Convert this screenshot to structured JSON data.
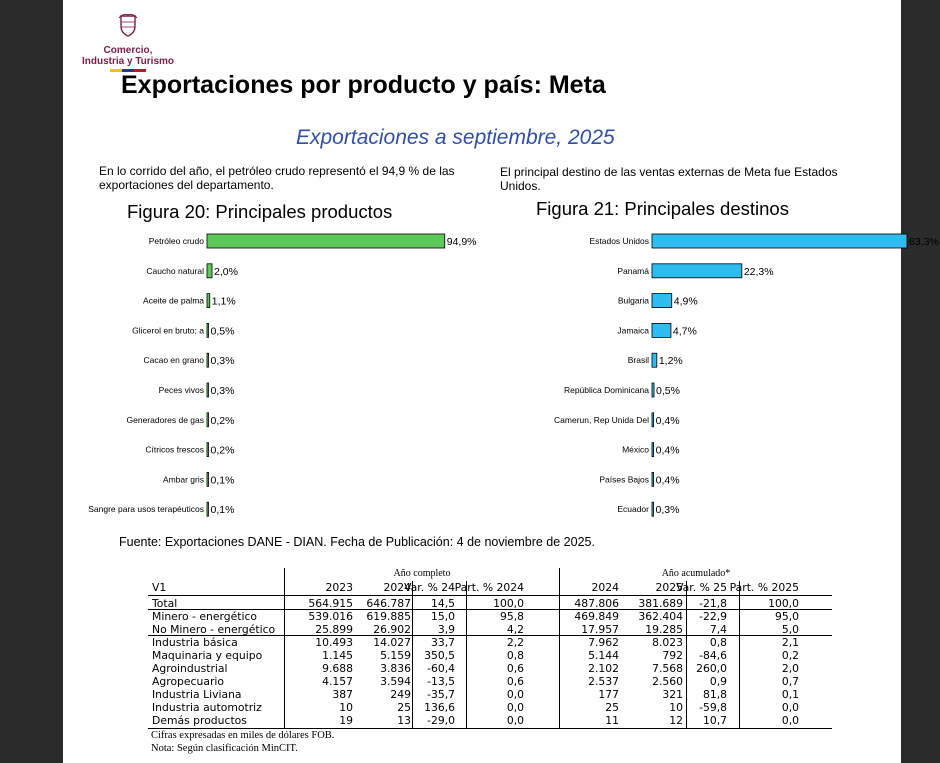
{
  "logo": {
    "line1": "Comercio,",
    "line2": "Industria y Turismo",
    "emblem_icon": "coat-of-arms-icon",
    "flag_colors": [
      "#f5c400",
      "#1f3a93",
      "#c8102e"
    ]
  },
  "title": "Exportaciones por producto y país: Meta",
  "subtitle": "Exportaciones a septiembre, 2025",
  "left_text": "En lo corrido del año, el petróleo crudo representó el 94,9 % de las exportaciones del departamento.",
  "right_text": "El principal destino de las ventas externas de Meta fue Estados Unidos.",
  "chart_data": [
    {
      "type": "bar",
      "orientation": "horizontal",
      "title": "Figura 20: Principales productos",
      "color": "#5cc85a",
      "categories": [
        "Petróleo crudo",
        "Caucho natural",
        "Aceite de palma",
        "Glicerol en bruto; a",
        "Cacao en grano",
        "Peces vivos",
        "Generadores de gas",
        "Cítricos frescos",
        "Ambar gris",
        "Sangre para usos terapéuticos"
      ],
      "values": [
        94.9,
        2.0,
        1.1,
        0.5,
        0.3,
        0.3,
        0.2,
        0.2,
        0.1,
        0.1
      ],
      "labels": [
        "94,9%",
        "2,0%",
        "1,1%",
        "0,5%",
        "0,3%",
        "0,3%",
        "0,2%",
        "0,2%",
        "0,1%",
        "0,1%"
      ],
      "xlim": [
        0,
        95
      ]
    },
    {
      "type": "bar",
      "orientation": "horizontal",
      "title": "Figura 21: Principales destinos",
      "color": "#2fbcf0",
      "categories": [
        "Estados Unidos",
        "Panamá",
        "Bulgaria",
        "Jamaica",
        "Brasil",
        "República Dominicana",
        "Camerun, Rep Unida Del",
        "México",
        "Países Bajos",
        "Ecuador"
      ],
      "values": [
        63.3,
        22.3,
        4.9,
        4.7,
        1.2,
        0.5,
        0.4,
        0.4,
        0.4,
        0.3
      ],
      "labels": [
        "63,3%",
        "22,3%",
        "4,9%",
        "4,7%",
        "1,2%",
        "0,5%",
        "0,4%",
        "0,4%",
        "0,4%",
        "0,3%"
      ],
      "xlim": [
        0,
        63.3
      ]
    }
  ],
  "source": "Fuente: Exportaciones DANE - DIAN. Fecha de Publicación: 4 de noviembre de 2025.",
  "table": {
    "group_full": "Año completo",
    "group_acc": "Año acumulado*",
    "headers": [
      "V1",
      "2023",
      "2024",
      "Var. % 24",
      "Part. % 2024",
      "2024",
      "2025",
      "Var. % 25",
      "Part. % 2025"
    ],
    "rows": [
      [
        "Total",
        "564.915",
        "646.787",
        "14,5",
        "100,0",
        "487.806",
        "381.689",
        "-21,8",
        "100,0"
      ],
      [
        "Minero - energético",
        "539.016",
        "619.885",
        "15,0",
        "95,8",
        "469.849",
        "362.404",
        "-22,9",
        "95,0"
      ],
      [
        "No Minero - energético",
        "25.899",
        "26.902",
        "3,9",
        "4,2",
        "17.957",
        "19.285",
        "7,4",
        "5,0"
      ],
      [
        "Industria básica",
        "10.493",
        "14.027",
        "33,7",
        "2,2",
        "7.962",
        "8.023",
        "0,8",
        "2,1"
      ],
      [
        "Maquinaria y equipo",
        "1.145",
        "5.159",
        "350,5",
        "0,8",
        "5.144",
        "792",
        "-84,6",
        "0,2"
      ],
      [
        "Agroindustrial",
        "9.688",
        "3.836",
        "-60,4",
        "0,6",
        "2.102",
        "7.568",
        "260,0",
        "2,0"
      ],
      [
        "Agropecuario",
        "4.157",
        "3.594",
        "-13,5",
        "0,6",
        "2.537",
        "2.560",
        "0,9",
        "0,7"
      ],
      [
        "Industria Liviana",
        "387",
        "249",
        "-35,7",
        "0,0",
        "177",
        "321",
        "81,8",
        "0,1"
      ],
      [
        "Industria automotriz",
        "10",
        "25",
        "136,6",
        "0,0",
        "25",
        "10",
        "-59,8",
        "0,0"
      ],
      [
        "Demás productos",
        "19",
        "13",
        "-29,0",
        "0,0",
        "11",
        "12",
        "10,7",
        "0,0"
      ]
    ],
    "note1": "Cifras expresadas en miles de dólares FOB.",
    "note2": "Nota: Según clasificación MinCIT."
  }
}
